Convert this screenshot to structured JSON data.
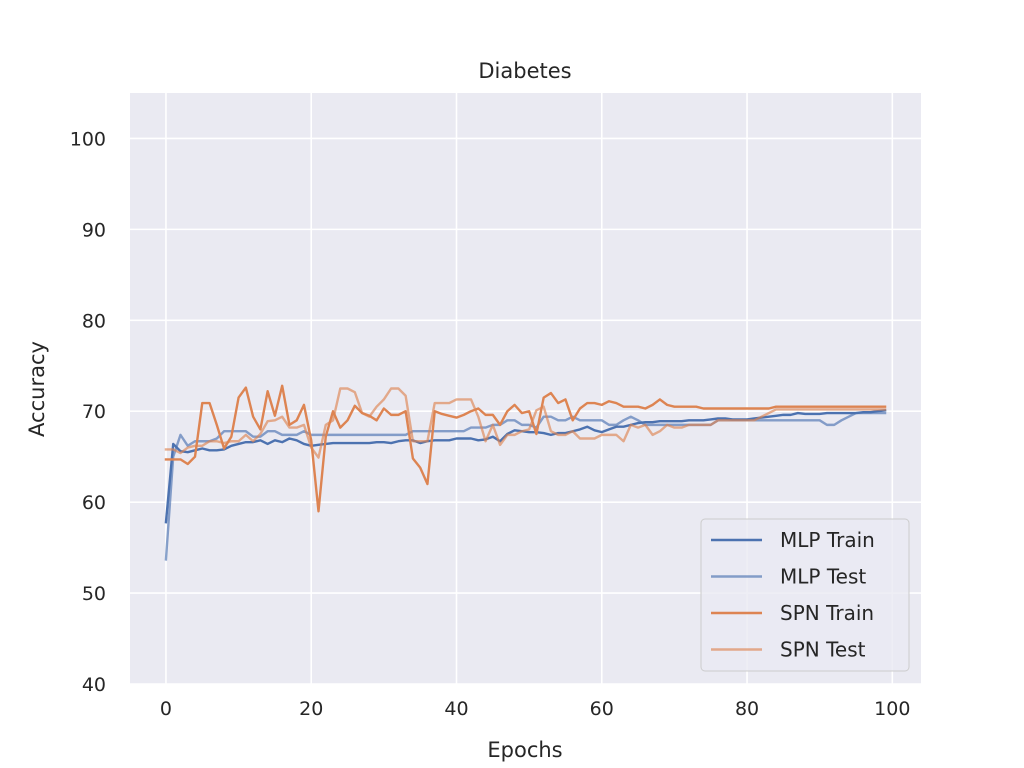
{
  "chart_data": {
    "type": "line",
    "title": "Diabetes",
    "xlabel": "Epochs",
    "ylabel": "Accuracy",
    "xlim": [
      -4.95,
      103.95
    ],
    "ylim": [
      40,
      105
    ],
    "xticks": [
      0,
      20,
      40,
      60,
      80,
      100
    ],
    "yticks": [
      40,
      50,
      60,
      70,
      80,
      90,
      100
    ],
    "grid": true,
    "legend_position": "bottom-right",
    "series": [
      {
        "name": "MLP Train",
        "color": "#4c72b0",
        "opacity": 1.0,
        "values": [
          57.8,
          66.4,
          65.6,
          65.5,
          65.7,
          65.9,
          65.7,
          65.7,
          65.8,
          66.2,
          66.4,
          66.6,
          66.6,
          66.8,
          66.4,
          66.8,
          66.6,
          67.0,
          66.8,
          66.4,
          66.2,
          66.3,
          66.4,
          66.5,
          66.5,
          66.5,
          66.5,
          66.5,
          66.5,
          66.6,
          66.6,
          66.5,
          66.7,
          66.8,
          66.8,
          66.5,
          66.7,
          66.8,
          66.8,
          66.8,
          67.0,
          67.0,
          67.0,
          66.8,
          66.9,
          67.2,
          66.7,
          67.5,
          67.9,
          67.8,
          67.7,
          67.7,
          67.6,
          67.4,
          67.6,
          67.6,
          67.8,
          68.0,
          68.3,
          67.9,
          67.7,
          68.0,
          68.3,
          68.3,
          68.5,
          68.7,
          68.8,
          68.8,
          68.9,
          68.9,
          68.9,
          68.9,
          69.0,
          69.0,
          69.0,
          69.1,
          69.2,
          69.2,
          69.1,
          69.1,
          69.1,
          69.2,
          69.3,
          69.4,
          69.5,
          69.6,
          69.6,
          69.8,
          69.7,
          69.7,
          69.7,
          69.8,
          69.8,
          69.8,
          69.8,
          69.8,
          69.9,
          69.9,
          70.0,
          70.1
        ]
      },
      {
        "name": "MLP Test",
        "color": "#4c72b0",
        "opacity": 0.65,
        "values": [
          53.7,
          65.0,
          67.4,
          66.2,
          66.7,
          66.7,
          66.7,
          67.0,
          67.8,
          67.8,
          67.8,
          67.8,
          67.2,
          67.2,
          67.8,
          67.8,
          67.4,
          67.4,
          67.4,
          67.8,
          67.4,
          67.4,
          67.4,
          67.4,
          67.4,
          67.4,
          67.4,
          67.4,
          67.4,
          67.4,
          67.4,
          67.4,
          67.4,
          67.4,
          67.8,
          67.8,
          67.8,
          67.8,
          67.8,
          67.8,
          67.8,
          67.8,
          68.2,
          68.2,
          68.2,
          68.5,
          68.5,
          69.0,
          69.0,
          68.5,
          68.5,
          68.2,
          69.4,
          69.4,
          69.0,
          69.0,
          69.4,
          69.0,
          69.0,
          69.0,
          69.0,
          68.5,
          68.5,
          69.0,
          69.4,
          69.0,
          68.5,
          68.5,
          68.5,
          68.5,
          68.5,
          68.5,
          68.5,
          68.5,
          68.5,
          68.5,
          69.0,
          69.0,
          69.0,
          69.0,
          69.0,
          69.0,
          69.0,
          69.0,
          69.0,
          69.0,
          69.0,
          69.0,
          69.0,
          69.0,
          69.0,
          68.5,
          68.5,
          69.0,
          69.4,
          69.8,
          69.8,
          69.8,
          69.8,
          69.8
        ]
      },
      {
        "name": "SPN Train",
        "color": "#dd8452",
        "opacity": 1.0,
        "values": [
          64.7,
          64.7,
          64.7,
          64.2,
          65.0,
          70.9,
          70.9,
          68.5,
          65.9,
          67.2,
          71.5,
          72.6,
          69.4,
          68.0,
          72.2,
          69.5,
          72.8,
          68.5,
          69.0,
          70.7,
          66.8,
          59.0,
          67.2,
          70.0,
          68.2,
          69.0,
          70.6,
          69.8,
          69.5,
          69.0,
          70.3,
          69.6,
          69.6,
          70.0,
          64.8,
          63.8,
          62.0,
          70.0,
          69.7,
          69.5,
          69.3,
          69.6,
          70.0,
          70.3,
          69.6,
          69.6,
          68.5,
          70.0,
          70.7,
          69.8,
          70.0,
          67.5,
          71.5,
          72.0,
          70.9,
          71.3,
          69.0,
          70.3,
          70.9,
          70.9,
          70.7,
          71.1,
          70.9,
          70.5,
          70.5,
          70.5,
          70.3,
          70.7,
          71.3,
          70.7,
          70.5,
          70.5,
          70.5,
          70.5,
          70.3,
          70.3,
          70.3,
          70.3,
          70.3,
          70.3,
          70.3,
          70.3,
          70.3,
          70.3,
          70.5,
          70.5,
          70.5,
          70.5,
          70.5,
          70.5,
          70.5,
          70.5,
          70.5,
          70.5,
          70.5,
          70.5,
          70.5,
          70.5,
          70.5,
          70.5
        ]
      },
      {
        "name": "SPN Test",
        "color": "#dd8452",
        "opacity": 0.65,
        "values": [
          65.8,
          65.8,
          65.4,
          66.0,
          66.2,
          66.2,
          66.7,
          66.7,
          66.5,
          66.7,
          66.7,
          67.4,
          66.7,
          67.5,
          68.9,
          69.0,
          69.4,
          68.2,
          68.2,
          68.5,
          66.0,
          64.9,
          68.5,
          69.0,
          72.5,
          72.5,
          72.1,
          69.8,
          69.4,
          70.5,
          71.3,
          72.5,
          72.5,
          71.7,
          66.7,
          66.7,
          66.7,
          70.9,
          70.9,
          70.9,
          71.3,
          71.3,
          71.3,
          69.4,
          66.7,
          68.5,
          66.3,
          67.4,
          67.4,
          67.8,
          68.0,
          70.1,
          70.5,
          67.8,
          67.4,
          67.4,
          67.8,
          67.0,
          67.0,
          67.0,
          67.4,
          67.4,
          67.4,
          66.7,
          68.5,
          68.2,
          68.5,
          67.4,
          67.8,
          68.5,
          68.2,
          68.2,
          68.5,
          68.5,
          68.5,
          68.5,
          69.0,
          69.0,
          69.0,
          69.0,
          69.0,
          69.0,
          69.4,
          69.8,
          70.2,
          70.2,
          70.2,
          70.2,
          70.2,
          70.2,
          70.2,
          70.2,
          70.2,
          70.2,
          70.2,
          70.2,
          70.2,
          70.2,
          70.2,
          70.2
        ]
      }
    ]
  }
}
